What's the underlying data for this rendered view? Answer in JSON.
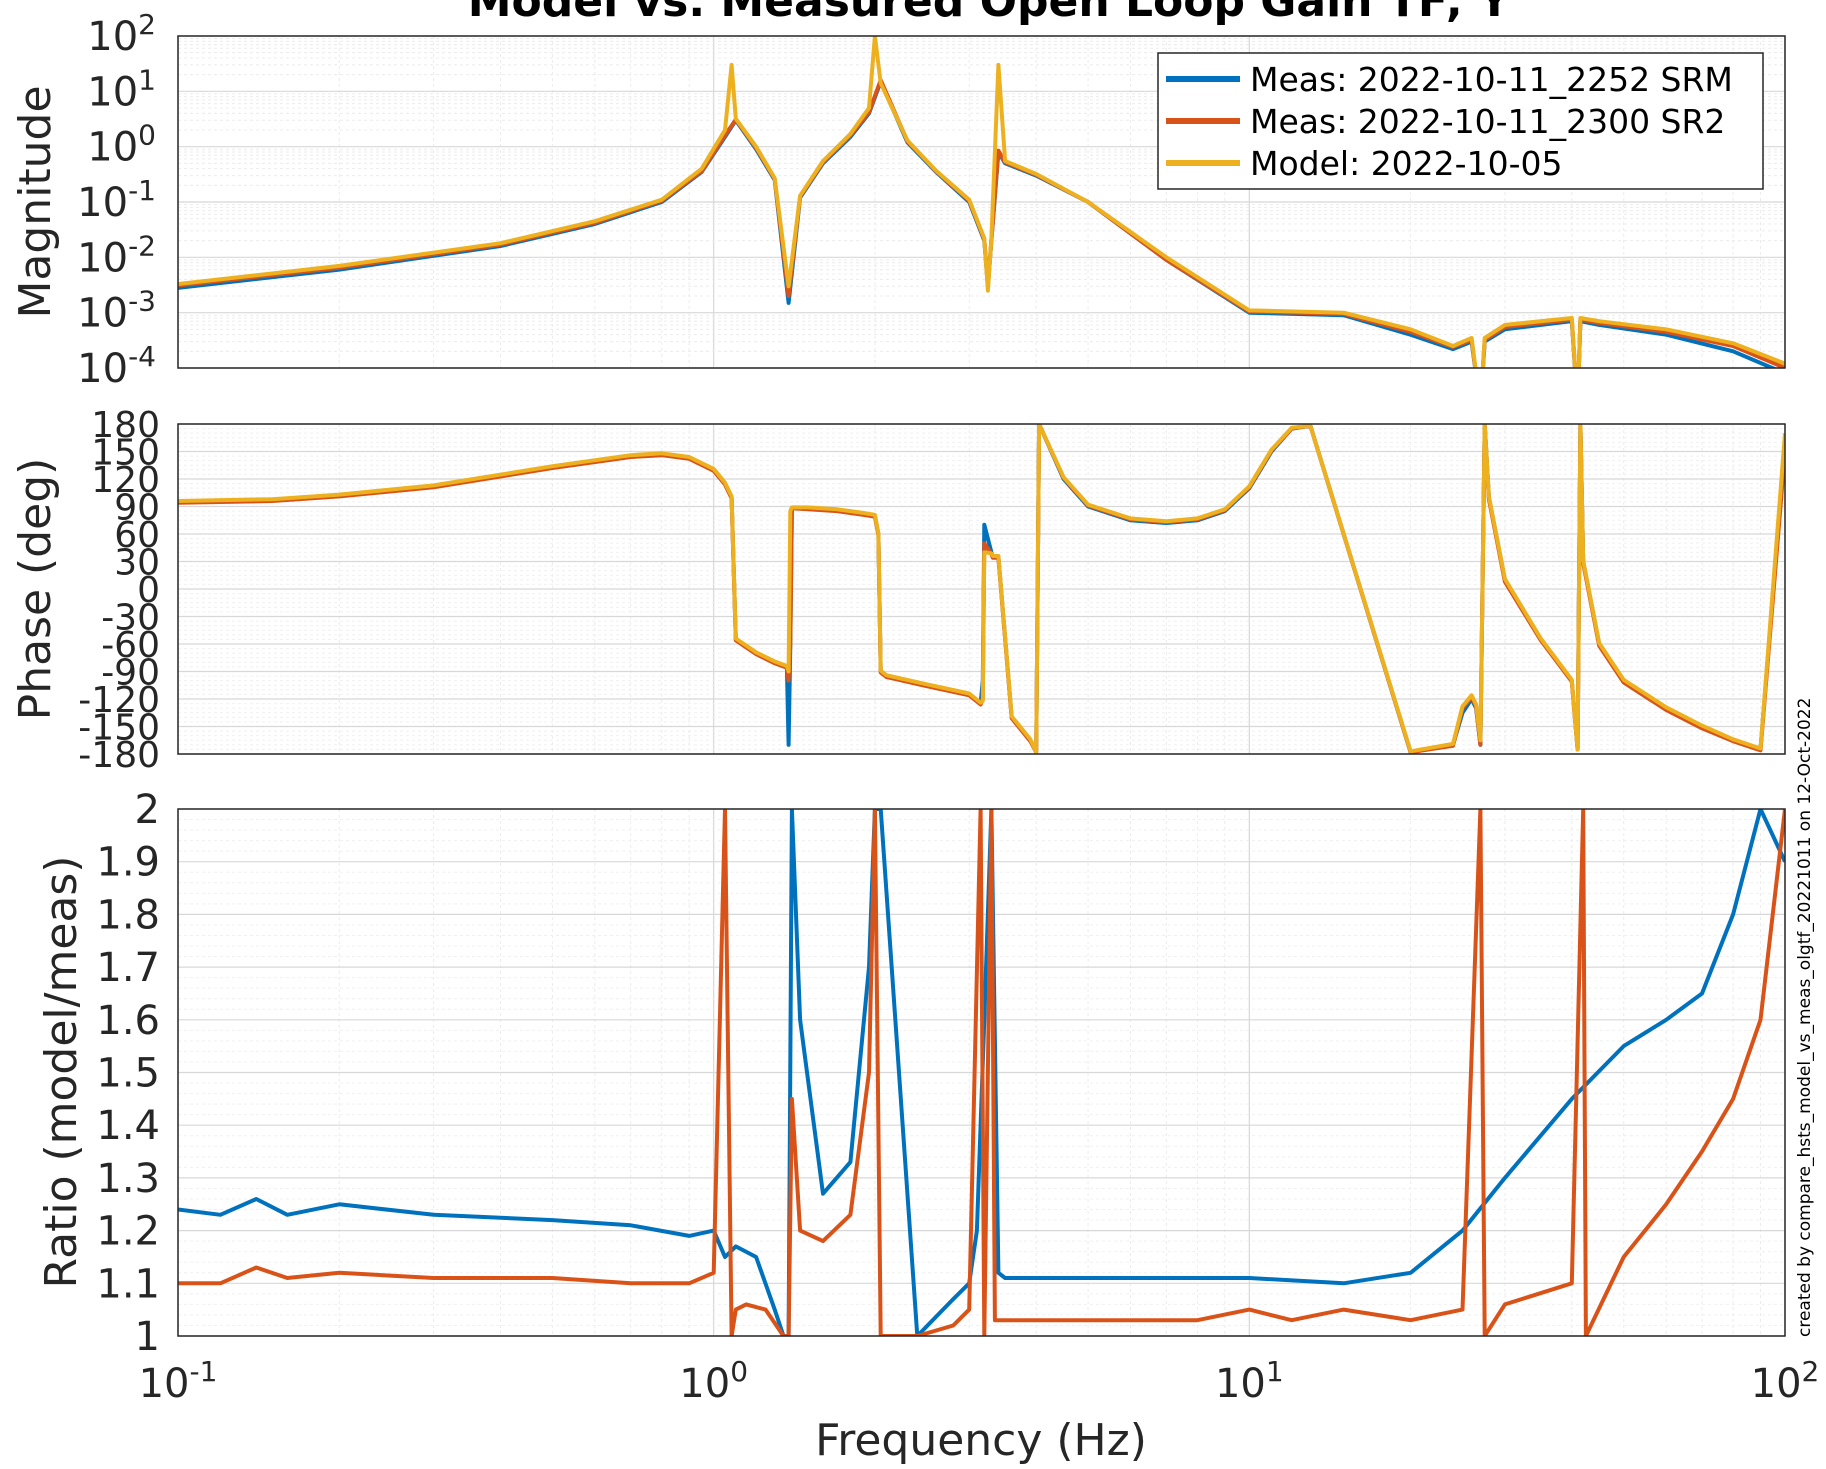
{
  "title": "Model vs. Measured Open Loop Gain TF; Y",
  "xlabel": "Frequency (Hz)",
  "footnote": "created by compare_hsts_model_vs_meas_olgtf_20221011 on 12-Oct-2022",
  "colors": {
    "srm": "#0072BD",
    "sr2": "#D95319",
    "model": "#EDB120"
  },
  "legend": [
    {
      "label": "Meas: 2022-10-11_2252 SRM",
      "color": "#0072BD"
    },
    {
      "label": "Meas: 2022-10-11_2300 SR2",
      "color": "#D95319"
    },
    {
      "label": "Model: 2022-10-05",
      "color": "#EDB120"
    }
  ],
  "x_ticks": [
    {
      "base": "10",
      "exp": "-1",
      "value": 0.1
    },
    {
      "base": "10",
      "exp": "0",
      "value": 1
    },
    {
      "base": "10",
      "exp": "1",
      "value": 10
    },
    {
      "base": "10",
      "exp": "2",
      "value": 100
    }
  ],
  "panels": {
    "magnitude": {
      "ylabel": "Magnitude",
      "ticks": [
        {
          "base": "10",
          "exp": "2",
          "value": 2
        },
        {
          "base": "10",
          "exp": "1",
          "value": 1
        },
        {
          "base": "10",
          "exp": "0",
          "value": 0
        },
        {
          "base": "10",
          "exp": "-1",
          "value": -1
        },
        {
          "base": "10",
          "exp": "-2",
          "value": -2
        },
        {
          "base": "10",
          "exp": "-3",
          "value": -3
        },
        {
          "base": "10",
          "exp": "-4",
          "value": -4
        }
      ]
    },
    "phase": {
      "ylabel": "Phase (deg)",
      "ticks": [
        "180",
        "150",
        "120",
        "90",
        "60",
        "30",
        "0",
        "-30",
        "-60",
        "-90",
        "-120",
        "-150",
        "-180"
      ]
    },
    "ratio": {
      "ylabel": "Ratio (model/meas)",
      "ticks": [
        "2",
        "1.9",
        "1.8",
        "1.7",
        "1.6",
        "1.5",
        "1.4",
        "1.3",
        "1.2",
        "1.1",
        "1"
      ]
    }
  },
  "chart_data": [
    {
      "type": "line",
      "panel": "magnitude",
      "xscale": "log",
      "yscale": "log",
      "xlim": [
        0.1,
        100
      ],
      "ylim": [
        0.0001,
        100
      ],
      "grid": true,
      "legend_position": "top-right",
      "series": [
        {
          "name": "Meas: 2022-10-11_2252 SRM",
          "color": "#0072BD",
          "x": [
            0.1,
            0.2,
            0.4,
            0.6,
            0.8,
            0.95,
            1.05,
            1.1,
            1.2,
            1.3,
            1.38,
            1.45,
            1.6,
            1.8,
            1.95,
            2.05,
            2.3,
            2.6,
            3.0,
            3.2,
            3.25,
            3.3,
            3.4,
            3.5,
            4.0,
            5,
            7,
            10,
            15,
            20,
            24,
            26,
            27,
            27.5,
            30,
            40,
            41,
            41.5,
            45,
            60,
            80,
            100
          ],
          "y": [
            0.0028,
            0.006,
            0.016,
            0.04,
            0.1,
            0.35,
            1.5,
            3.0,
            0.9,
            0.25,
            0.0015,
            0.12,
            0.5,
            1.5,
            4.0,
            15,
            1.2,
            0.35,
            0.1,
            0.02,
            0.003,
            0.02,
            0.8,
            0.5,
            0.3,
            0.1,
            0.009,
            0.001,
            0.0009,
            0.0004,
            0.00022,
            0.0003,
            2e-05,
            0.0003,
            0.0005,
            0.0007,
            2e-05,
            0.0007,
            0.0006,
            0.0004,
            0.0002,
            8e-05
          ]
        },
        {
          "name": "Meas: 2022-10-11_2300 SR2",
          "color": "#D95319",
          "x": [
            0.1,
            0.2,
            0.4,
            0.6,
            0.8,
            0.95,
            1.05,
            1.1,
            1.2,
            1.3,
            1.38,
            1.45,
            1.6,
            1.8,
            1.95,
            2.05,
            2.3,
            2.6,
            3.0,
            3.2,
            3.25,
            3.3,
            3.4,
            3.5,
            4.0,
            5,
            7,
            10,
            15,
            20,
            24,
            26,
            27,
            27.5,
            30,
            40,
            41,
            41.5,
            45,
            60,
            80,
            100
          ],
          "y": [
            0.0031,
            0.0065,
            0.017,
            0.042,
            0.105,
            0.36,
            1.6,
            3.1,
            0.95,
            0.26,
            0.002,
            0.125,
            0.52,
            1.6,
            4.2,
            16,
            1.25,
            0.36,
            0.105,
            0.021,
            0.003,
            0.021,
            0.85,
            0.52,
            0.31,
            0.1,
            0.009,
            0.00105,
            0.00095,
            0.00045,
            0.00024,
            0.00032,
            2e-05,
            0.00032,
            0.00055,
            0.00075,
            2e-05,
            0.00075,
            0.00065,
            0.00045,
            0.00025,
            0.0001
          ]
        },
        {
          "name": "Model: 2022-10-05",
          "color": "#EDB120",
          "x": [
            0.1,
            0.2,
            0.4,
            0.6,
            0.8,
            0.95,
            1.05,
            1.08,
            1.1,
            1.2,
            1.3,
            1.38,
            1.45,
            1.6,
            1.8,
            1.95,
            2.0,
            2.05,
            2.3,
            2.6,
            3.0,
            3.2,
            3.25,
            3.3,
            3.4,
            3.5,
            4.0,
            5,
            7,
            10,
            15,
            20,
            24,
            26,
            27,
            27.5,
            30,
            40,
            41,
            41.5,
            45,
            60,
            80,
            100
          ],
          "y": [
            0.0033,
            0.007,
            0.018,
            0.045,
            0.11,
            0.4,
            2.0,
            30,
            3.2,
            1.0,
            0.27,
            0.003,
            0.13,
            0.55,
            1.7,
            5.0,
            100,
            14,
            1.3,
            0.37,
            0.11,
            0.022,
            0.0025,
            0.022,
            30,
            0.55,
            0.32,
            0.1,
            0.01,
            0.0011,
            0.001,
            0.0005,
            0.00025,
            0.00035,
            2e-05,
            0.00035,
            0.0006,
            0.0008,
            2e-05,
            0.0008,
            0.0007,
            0.0005,
            0.00028,
            0.00012
          ]
        }
      ]
    },
    {
      "type": "line",
      "panel": "phase",
      "xscale": "log",
      "xlim": [
        0.1,
        100
      ],
      "ylim": [
        -180,
        180
      ],
      "grid": true,
      "series": [
        {
          "name": "Meas: 2022-10-11_2252 SRM",
          "color": "#0072BD",
          "x": [
            0.1,
            0.15,
            0.2,
            0.3,
            0.5,
            0.7,
            0.8,
            0.9,
            1.0,
            1.05,
            1.08,
            1.1,
            1.2,
            1.3,
            1.37,
            1.38,
            1.39,
            1.4,
            1.5,
            1.7,
            1.9,
            2.0,
            2.03,
            2.05,
            2.1,
            2.5,
            3.0,
            3.15,
            3.18,
            3.2,
            3.3,
            3.32,
            3.4,
            3.6,
            3.9,
            4.0,
            4.05,
            4.5,
            5,
            6,
            7,
            8,
            9,
            10,
            11,
            12,
            13,
            20,
            24,
            25,
            26,
            26.5,
            27,
            27.5,
            28,
            30,
            35,
            40,
            41,
            41.5,
            42,
            45,
            50,
            60,
            70,
            80,
            90,
            100
          ],
          "y": [
            95,
            97,
            102,
            112,
            133,
            145,
            147,
            143,
            130,
            115,
            100,
            -55,
            -70,
            -80,
            -85,
            -170,
            -60,
            88,
            88,
            86,
            82,
            80,
            60,
            -90,
            -95,
            -105,
            -115,
            -125,
            -100,
            70,
            40,
            35,
            35,
            -140,
            -165,
            -178,
            180,
            120,
            90,
            75,
            72,
            75,
            85,
            110,
            150,
            175,
            178,
            -178,
            -170,
            -135,
            -120,
            -130,
            -170,
            180,
            100,
            10,
            -55,
            -100,
            -175,
            180,
            30,
            -60,
            -100,
            -130,
            -150,
            -165,
            -175,
            160
          ]
        },
        {
          "name": "Meas: 2022-10-11_2300 SR2",
          "color": "#D95319",
          "x": [
            0.1,
            0.15,
            0.2,
            0.3,
            0.5,
            0.7,
            0.8,
            0.9,
            1.0,
            1.05,
            1.08,
            1.1,
            1.2,
            1.3,
            1.37,
            1.38,
            1.39,
            1.4,
            1.5,
            1.7,
            1.9,
            2.0,
            2.03,
            2.05,
            2.1,
            2.5,
            3.0,
            3.15,
            3.18,
            3.2,
            3.3,
            3.32,
            3.4,
            3.6,
            3.9,
            4.0,
            4.05,
            4.5,
            5,
            6,
            7,
            8,
            9,
            10,
            11,
            12,
            13,
            20,
            24,
            25,
            26,
            26.5,
            27,
            27.5,
            28,
            30,
            35,
            40,
            41,
            41.5,
            42,
            45,
            50,
            60,
            70,
            80,
            90,
            100
          ],
          "y": [
            94,
            96,
            101,
            111,
            132,
            144,
            146,
            142,
            129,
            114,
            99,
            -56,
            -71,
            -81,
            -86,
            -100,
            -62,
            88,
            87,
            85,
            81,
            79,
            59,
            -91,
            -96,
            -106,
            -116,
            -126,
            -120,
            50,
            38,
            34,
            34,
            -141,
            -166,
            -178,
            180,
            121,
            91,
            76,
            73,
            76,
            86,
            111,
            151,
            175,
            178,
            -178,
            -171,
            -130,
            -118,
            -128,
            -170,
            180,
            98,
            8,
            -56,
            -101,
            -175,
            180,
            28,
            -62,
            -102,
            -132,
            -152,
            -166,
            -176,
            150
          ]
        },
        {
          "name": "Model: 2022-10-05",
          "color": "#EDB120",
          "x": [
            0.1,
            0.15,
            0.2,
            0.3,
            0.5,
            0.7,
            0.8,
            0.9,
            1.0,
            1.05,
            1.08,
            1.1,
            1.2,
            1.3,
            1.37,
            1.38,
            1.39,
            1.4,
            1.5,
            1.7,
            1.9,
            2.0,
            2.03,
            2.05,
            2.1,
            2.5,
            3.0,
            3.15,
            3.18,
            3.2,
            3.3,
            3.32,
            3.4,
            3.6,
            3.9,
            4.0,
            4.05,
            4.5,
            5,
            6,
            7,
            8,
            9,
            10,
            11,
            12,
            13,
            20,
            24,
            25,
            26,
            26.5,
            27,
            27.5,
            28,
            30,
            35,
            40,
            41,
            41.5,
            42,
            45,
            50,
            60,
            70,
            80,
            90,
            100
          ],
          "y": [
            96,
            98,
            103,
            113,
            134,
            146,
            148,
            144,
            131,
            116,
            101,
            -54,
            -69,
            -79,
            -84,
            -90,
            85,
            89,
            89,
            87,
            83,
            81,
            61,
            -89,
            -94,
            -104,
            -114,
            -124,
            -122,
            40,
            39,
            36,
            36,
            -139,
            -164,
            -178,
            180,
            122,
            92,
            77,
            74,
            77,
            87,
            112,
            152,
            176,
            178,
            -177,
            -169,
            -128,
            -116,
            -126,
            -165,
            180,
            101,
            11,
            -54,
            -99,
            -175,
            180,
            31,
            -59,
            -99,
            -129,
            -149,
            -164,
            -174,
            170
          ]
        }
      ]
    },
    {
      "type": "line",
      "panel": "ratio",
      "xscale": "log",
      "xlim": [
        0.1,
        100
      ],
      "ylim": [
        1,
        2
      ],
      "grid": true,
      "series": [
        {
          "name": "Meas: 2022-10-11_2252 SRM",
          "color": "#0072BD",
          "x": [
            0.1,
            0.12,
            0.14,
            0.16,
            0.2,
            0.3,
            0.5,
            0.7,
            0.9,
            1.0,
            1.05,
            1.1,
            1.2,
            1.3,
            1.35,
            1.38,
            1.4,
            1.45,
            1.6,
            1.8,
            1.95,
            2.0,
            2.05,
            2.4,
            2.8,
            3.0,
            3.1,
            3.2,
            3.3,
            3.4,
            3.5,
            5,
            8,
            10,
            15,
            20,
            25,
            30,
            40,
            50,
            60,
            70,
            80,
            90,
            100
          ],
          "y": [
            1.24,
            1.23,
            1.26,
            1.23,
            1.25,
            1.23,
            1.22,
            1.21,
            1.19,
            1.2,
            1.15,
            1.17,
            1.15,
            1.05,
            1.0,
            1.0,
            2.0,
            1.6,
            1.27,
            1.33,
            1.7,
            2.0,
            2.0,
            1.0,
            1.07,
            1.1,
            1.2,
            1.6,
            2.0,
            1.12,
            1.11,
            1.11,
            1.11,
            1.11,
            1.1,
            1.12,
            1.2,
            1.3,
            1.45,
            1.55,
            1.6,
            1.65,
            1.8,
            2.0,
            1.9
          ]
        },
        {
          "name": "Meas: 2022-10-11_2300 SR2",
          "color": "#D95319",
          "x": [
            0.1,
            0.12,
            0.14,
            0.16,
            0.2,
            0.3,
            0.5,
            0.7,
            0.9,
            1.0,
            1.05,
            1.08,
            1.1,
            1.15,
            1.25,
            1.35,
            1.38,
            1.4,
            1.45,
            1.6,
            1.8,
            1.95,
            2.0,
            2.05,
            2.4,
            2.8,
            3.0,
            3.15,
            3.2,
            3.3,
            3.35,
            3.5,
            5,
            8,
            10,
            12,
            15,
            20,
            25,
            27,
            27.5,
            30,
            40,
            42,
            42.5,
            50,
            60,
            70,
            80,
            90,
            100
          ],
          "y": [
            1.1,
            1.1,
            1.13,
            1.11,
            1.12,
            1.11,
            1.11,
            1.1,
            1.1,
            1.12,
            2.0,
            1.0,
            1.05,
            1.06,
            1.05,
            1.0,
            1.0,
            1.45,
            1.2,
            1.18,
            1.23,
            1.5,
            2.0,
            1.0,
            1.0,
            1.02,
            1.05,
            2.0,
            1.0,
            2.0,
            1.03,
            1.03,
            1.03,
            1.03,
            1.05,
            1.03,
            1.05,
            1.03,
            1.05,
            2.0,
            1.0,
            1.06,
            1.1,
            2.0,
            1.0,
            1.15,
            1.25,
            1.35,
            1.45,
            1.6,
            2.0
          ]
        }
      ]
    }
  ]
}
